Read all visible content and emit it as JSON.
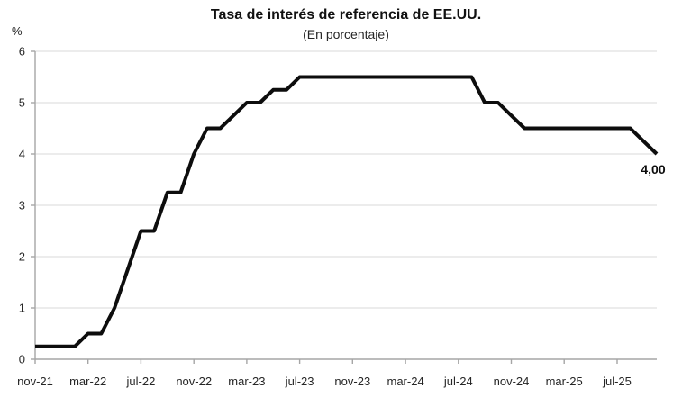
{
  "chart_data": {
    "type": "line",
    "title": "Tasa de interés de referencia de EE.UU.",
    "subtitle": "(En porcentaje)",
    "ylabel": "%",
    "xlabel": "",
    "ylim": [
      0,
      6
    ],
    "y_ticks": [
      0,
      1,
      2,
      3,
      4,
      5,
      6
    ],
    "grid": true,
    "legend": false,
    "x_tick_labels": [
      "nov-21",
      "mar-22",
      "jul-22",
      "nov-22",
      "mar-23",
      "jul-23",
      "nov-23",
      "mar-24",
      "jul-24",
      "nov-24",
      "mar-25",
      "jul-25"
    ],
    "x_monthly": [
      "nov-21",
      "dic-21",
      "ene-22",
      "feb-22",
      "mar-22",
      "abr-22",
      "may-22",
      "jun-22",
      "jul-22",
      "ago-22",
      "sep-22",
      "oct-22",
      "nov-22",
      "dic-22",
      "ene-23",
      "feb-23",
      "mar-23",
      "abr-23",
      "may-23",
      "jun-23",
      "jul-23",
      "ago-23",
      "sep-23",
      "oct-23",
      "nov-23",
      "dic-23",
      "ene-24",
      "feb-24",
      "mar-24",
      "abr-24",
      "may-24",
      "jun-24",
      "jul-24",
      "ago-24",
      "sep-24",
      "oct-24",
      "nov-24",
      "dic-24",
      "ene-25",
      "feb-25",
      "mar-25",
      "abr-25",
      "may-25",
      "jun-25",
      "jul-25",
      "ago-25",
      "sep-25",
      "oct-25"
    ],
    "series": [
      {
        "name": "Tasa de interés de referencia de EE.UU.",
        "values": [
          0.25,
          0.25,
          0.25,
          0.25,
          0.5,
          0.5,
          1.0,
          1.75,
          2.5,
          2.5,
          3.25,
          3.25,
          4.0,
          4.5,
          4.5,
          4.75,
          5.0,
          5.0,
          5.25,
          5.25,
          5.5,
          5.5,
          5.5,
          5.5,
          5.5,
          5.5,
          5.5,
          5.5,
          5.5,
          5.5,
          5.5,
          5.5,
          5.5,
          5.5,
          5.0,
          5.0,
          4.75,
          4.5,
          4.5,
          4.5,
          4.5,
          4.5,
          4.5,
          4.5,
          4.5,
          4.5,
          4.25,
          4.0
        ]
      }
    ],
    "annotation": {
      "text": "4,00",
      "x": "oct-25",
      "y": 4.0
    },
    "colors": {
      "line": "#0d0d0d",
      "grid": "#d9d9d9",
      "axis": "#a6a6a6",
      "tick_text": "#262626"
    }
  }
}
